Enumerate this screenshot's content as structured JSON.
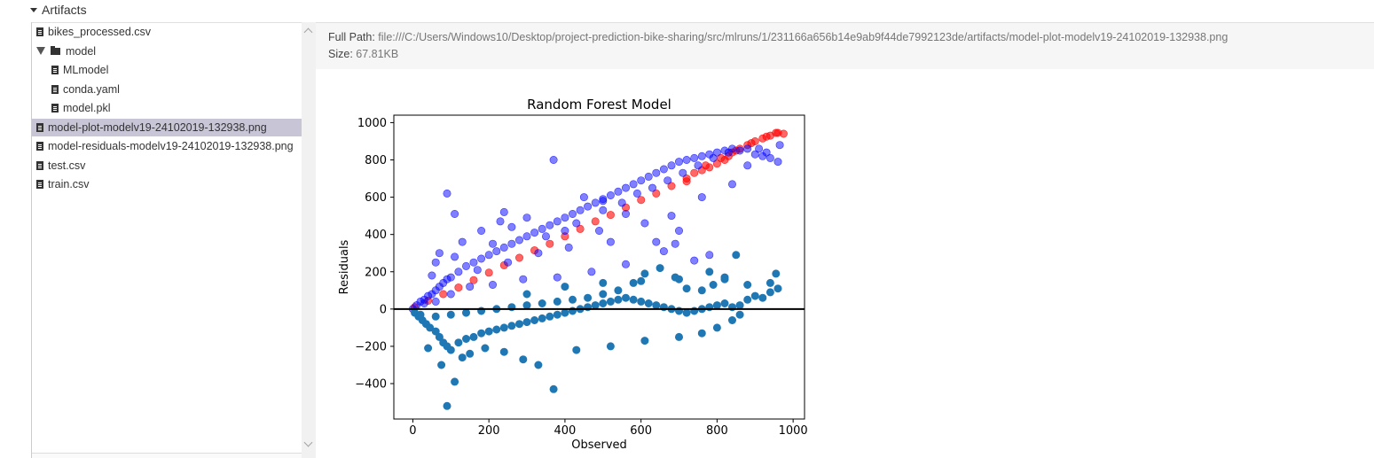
{
  "artifacts": {
    "header_label": "Artifacts"
  },
  "tree": {
    "items": [
      {
        "label": "bikes_processed.csv",
        "type": "file",
        "depth": 0,
        "selected": false
      },
      {
        "label": "model",
        "type": "folder",
        "depth": 0,
        "selected": false,
        "expanded": true
      },
      {
        "label": "MLmodel",
        "type": "file",
        "depth": 1,
        "selected": false
      },
      {
        "label": "conda.yaml",
        "type": "file",
        "depth": 1,
        "selected": false
      },
      {
        "label": "model.pkl",
        "type": "file",
        "depth": 1,
        "selected": false
      },
      {
        "label": "model-plot-modelv19-24102019-132938.png",
        "type": "image",
        "depth": 0,
        "selected": true
      },
      {
        "label": "model-residuals-modelv19-24102019-132938.png",
        "type": "image",
        "depth": 0,
        "selected": false
      },
      {
        "label": "test.csv",
        "type": "file",
        "depth": 0,
        "selected": false
      },
      {
        "label": "train.csv",
        "type": "file",
        "depth": 0,
        "selected": false
      }
    ]
  },
  "details": {
    "full_path_label": "Full Path:",
    "full_path_value": "file:///C:/Users/Windows10/Desktop/project-prediction-bike-sharing/src/mlruns/1/231166a656b14e9ab9f44de7992123de/artifacts/model-plot-modelv19-24102019-132938.png",
    "size_label": "Size:",
    "size_value": "67.81KB"
  },
  "chart_data": {
    "type": "scatter",
    "title": "Random Forest Model",
    "xlabel": "Observed",
    "ylabel": "Residuals",
    "xlim": [
      -50,
      1030
    ],
    "ylim": [
      -590,
      1040
    ],
    "xticks": [
      0,
      200,
      400,
      600,
      800,
      1000
    ],
    "yticks": [
      -400,
      -200,
      0,
      200,
      400,
      600,
      800,
      1000
    ],
    "hline": {
      "y": 0,
      "color": "#000000"
    },
    "series": [
      {
        "color": "#ff0000",
        "alpha": 0.6,
        "points": [
          [
            5,
            10
          ],
          [
            40,
            45
          ],
          [
            80,
            80
          ],
          [
            120,
            115
          ],
          [
            160,
            155
          ],
          [
            200,
            195
          ],
          [
            240,
            235
          ],
          [
            280,
            275
          ],
          [
            320,
            315
          ],
          [
            360,
            350
          ],
          [
            400,
            390
          ],
          [
            440,
            430
          ],
          [
            480,
            470
          ],
          [
            520,
            505
          ],
          [
            560,
            545
          ],
          [
            600,
            585
          ],
          [
            640,
            620
          ],
          [
            680,
            660
          ],
          [
            720,
            700
          ],
          [
            740,
            730
          ],
          [
            760,
            745
          ],
          [
            780,
            760
          ],
          [
            800,
            780
          ],
          [
            820,
            800
          ],
          [
            830,
            820
          ],
          [
            840,
            840
          ],
          [
            860,
            860
          ],
          [
            880,
            880
          ],
          [
            900,
            900
          ],
          [
            920,
            915
          ],
          [
            940,
            930
          ],
          [
            960,
            945
          ],
          [
            975,
            940
          ],
          [
            720,
            685
          ],
          [
            770,
            770
          ],
          [
            810,
            810
          ],
          [
            850,
            850
          ],
          [
            890,
            890
          ],
          [
            930,
            925
          ],
          [
            955,
            945
          ]
        ]
      },
      {
        "color": "#0000ff",
        "alpha": 0.5,
        "points": [
          [
            0,
            0
          ],
          [
            10,
            20
          ],
          [
            20,
            40
          ],
          [
            30,
            50
          ],
          [
            40,
            70
          ],
          [
            50,
            80
          ],
          [
            60,
            100
          ],
          [
            70,
            120
          ],
          [
            80,
            140
          ],
          [
            90,
            160
          ],
          [
            100,
            170
          ],
          [
            120,
            200
          ],
          [
            140,
            230
          ],
          [
            160,
            250
          ],
          [
            180,
            270
          ],
          [
            200,
            290
          ],
          [
            220,
            310
          ],
          [
            240,
            330
          ],
          [
            260,
            350
          ],
          [
            280,
            370
          ],
          [
            300,
            390
          ],
          [
            320,
            410
          ],
          [
            340,
            430
          ],
          [
            360,
            450
          ],
          [
            380,
            470
          ],
          [
            400,
            490
          ],
          [
            420,
            510
          ],
          [
            440,
            530
          ],
          [
            460,
            550
          ],
          [
            480,
            570
          ],
          [
            500,
            590
          ],
          [
            520,
            610
          ],
          [
            540,
            630
          ],
          [
            560,
            650
          ],
          [
            580,
            670
          ],
          [
            600,
            690
          ],
          [
            620,
            710
          ],
          [
            640,
            730
          ],
          [
            660,
            750
          ],
          [
            680,
            770
          ],
          [
            700,
            790
          ],
          [
            720,
            800
          ],
          [
            740,
            810
          ],
          [
            760,
            820
          ],
          [
            780,
            830
          ],
          [
            800,
            840
          ],
          [
            820,
            850
          ],
          [
            840,
            860
          ],
          [
            860,
            850
          ],
          [
            880,
            860
          ],
          [
            900,
            830
          ],
          [
            920,
            820
          ],
          [
            940,
            810
          ],
          [
            960,
            790
          ],
          [
            965,
            880
          ],
          [
            930,
            840
          ],
          [
            90,
            620
          ],
          [
            110,
            510
          ],
          [
            370,
            800
          ],
          [
            450,
            600
          ],
          [
            500,
            580
          ],
          [
            640,
            360
          ],
          [
            690,
            350
          ],
          [
            660,
            310
          ],
          [
            560,
            240
          ],
          [
            470,
            200
          ],
          [
            380,
            170
          ],
          [
            290,
            160
          ],
          [
            210,
            130
          ],
          [
            150,
            120
          ],
          [
            100,
            80
          ],
          [
            60,
            40
          ],
          [
            30,
            30
          ],
          [
            230,
            470
          ],
          [
            260,
            440
          ],
          [
            300,
            490
          ],
          [
            240,
            520
          ],
          [
            180,
            420
          ],
          [
            130,
            360
          ],
          [
            70,
            300
          ],
          [
            60,
            250
          ],
          [
            50,
            180
          ],
          [
            110,
            280
          ],
          [
            210,
            350
          ],
          [
            350,
            390
          ],
          [
            400,
            420
          ],
          [
            430,
            460
          ],
          [
            500,
            530
          ],
          [
            550,
            570
          ],
          [
            590,
            620
          ],
          [
            630,
            650
          ],
          [
            670,
            690
          ],
          [
            710,
            730
          ],
          [
            750,
            770
          ],
          [
            790,
            810
          ],
          [
            830,
            840
          ],
          [
            760,
            600
          ],
          [
            680,
            500
          ],
          [
            700,
            420
          ],
          [
            560,
            510
          ],
          [
            490,
            420
          ],
          [
            610,
            460
          ],
          [
            520,
            360
          ],
          [
            410,
            330
          ],
          [
            330,
            300
          ],
          [
            250,
            250
          ],
          [
            170,
            210
          ],
          [
            740,
            260
          ],
          [
            780,
            290
          ],
          [
            840,
            670
          ],
          [
            880,
            770
          ],
          [
            910,
            860
          ]
        ]
      },
      {
        "color": "#1f77b4",
        "alpha": 1,
        "points": [
          [
            5,
            -20
          ],
          [
            15,
            -40
          ],
          [
            25,
            -60
          ],
          [
            35,
            -80
          ],
          [
            45,
            -100
          ],
          [
            60,
            -120
          ],
          [
            70,
            -150
          ],
          [
            80,
            -180
          ],
          [
            90,
            -200
          ],
          [
            100,
            -220
          ],
          [
            120,
            -180
          ],
          [
            140,
            -160
          ],
          [
            160,
            -150
          ],
          [
            180,
            -130
          ],
          [
            200,
            -120
          ],
          [
            220,
            -110
          ],
          [
            240,
            -100
          ],
          [
            260,
            -90
          ],
          [
            280,
            -80
          ],
          [
            300,
            -70
          ],
          [
            320,
            -60
          ],
          [
            340,
            -50
          ],
          [
            360,
            -40
          ],
          [
            380,
            -30
          ],
          [
            400,
            -20
          ],
          [
            420,
            -10
          ],
          [
            440,
            0
          ],
          [
            460,
            10
          ],
          [
            480,
            20
          ],
          [
            500,
            30
          ],
          [
            520,
            40
          ],
          [
            540,
            50
          ],
          [
            560,
            60
          ],
          [
            580,
            50
          ],
          [
            600,
            40
          ],
          [
            620,
            30
          ],
          [
            640,
            20
          ],
          [
            660,
            10
          ],
          [
            680,
            0
          ],
          [
            700,
            -10
          ],
          [
            720,
            -20
          ],
          [
            740,
            -10
          ],
          [
            760,
            0
          ],
          [
            780,
            10
          ],
          [
            800,
            20
          ],
          [
            820,
            30
          ],
          [
            840,
            10
          ],
          [
            860,
            20
          ],
          [
            880,
            50
          ],
          [
            900,
            70
          ],
          [
            920,
            60
          ],
          [
            940,
            90
          ],
          [
            960,
            110
          ],
          [
            955,
            190
          ],
          [
            850,
            290
          ],
          [
            820,
            160
          ],
          [
            790,
            130
          ],
          [
            760,
            100
          ],
          [
            720,
            110
          ],
          [
            690,
            170
          ],
          [
            650,
            220
          ],
          [
            610,
            190
          ],
          [
            580,
            140
          ],
          [
            540,
            100
          ],
          [
            500,
            80
          ],
          [
            460,
            60
          ],
          [
            420,
            50
          ],
          [
            380,
            40
          ],
          [
            340,
            30
          ],
          [
            300,
            20
          ],
          [
            260,
            10
          ],
          [
            220,
            0
          ],
          [
            180,
            -10
          ],
          [
            140,
            -20
          ],
          [
            100,
            -30
          ],
          [
            60,
            -40
          ],
          [
            20,
            -30
          ],
          [
            90,
            -520
          ],
          [
            110,
            -390
          ],
          [
            370,
            -430
          ],
          [
            330,
            -300
          ],
          [
            290,
            -270
          ],
          [
            240,
            -230
          ],
          [
            190,
            -210
          ],
          [
            150,
            -240
          ],
          [
            130,
            -260
          ],
          [
            75,
            -300
          ],
          [
            40,
            -210
          ],
          [
            430,
            -220
          ],
          [
            520,
            -200
          ],
          [
            610,
            -170
          ],
          [
            700,
            -150
          ],
          [
            760,
            -130
          ],
          [
            800,
            -100
          ],
          [
            840,
            -60
          ],
          [
            860,
            -30
          ],
          [
            300,
            80
          ],
          [
            400,
            120
          ],
          [
            500,
            140
          ],
          [
            600,
            150
          ],
          [
            700,
            160
          ],
          [
            780,
            200
          ],
          [
            820,
            170
          ],
          [
            880,
            130
          ],
          [
            940,
            140
          ]
        ]
      }
    ]
  }
}
